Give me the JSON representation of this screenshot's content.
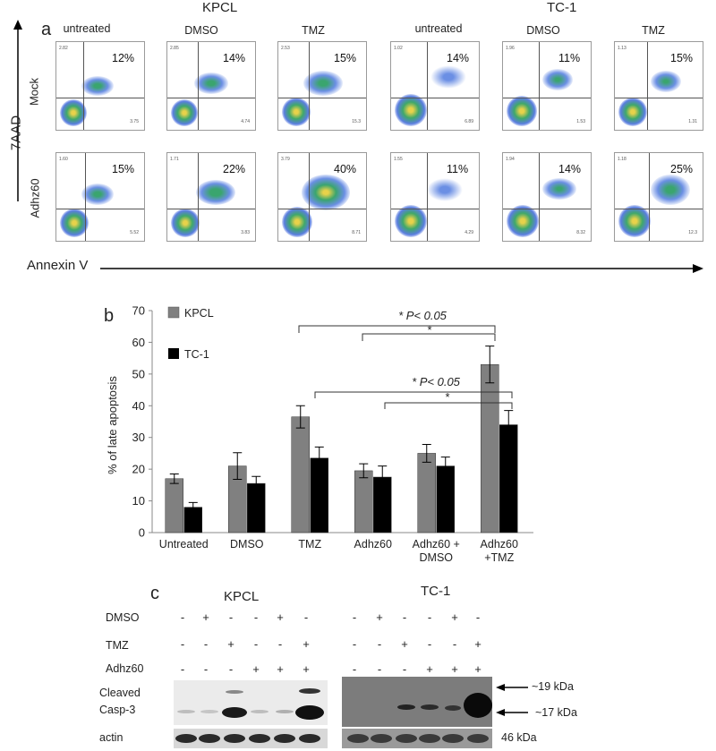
{
  "panel_a": {
    "label": "a",
    "y_axis_label": "7AAD",
    "x_axis_label": "Annexin V",
    "groups": [
      {
        "name": "KPCL",
        "conditions": [
          "untreated",
          "DMSO",
          "TMZ"
        ]
      },
      {
        "name": "TC-1",
        "conditions": [
          "untreated",
          "DMSO",
          "TMZ"
        ]
      }
    ],
    "rows": [
      "Mock",
      "Adhz60"
    ],
    "percentages": [
      [
        "12%",
        "14%",
        "15%",
        "14%",
        "11%",
        "15%"
      ],
      [
        "15%",
        "22%",
        "40%",
        "11%",
        "14%",
        "25%"
      ]
    ]
  },
  "panel_b": {
    "label": "b",
    "significance": [
      "* P< 0.05",
      "*",
      "* P< 0.05",
      "*"
    ]
  },
  "chart_data": {
    "type": "bar",
    "title": "",
    "xlabel": "",
    "ylabel": "% of late apoptosis",
    "ylim": [
      0,
      70
    ],
    "yticks": [
      "0",
      "10",
      "20",
      "30",
      "40",
      "50",
      "60",
      "70"
    ],
    "categories": [
      "Untreated",
      "DMSO",
      "TMZ",
      "Adhz60",
      "Adhz60 + DMSO",
      "Adhz60 +TMZ"
    ],
    "category_lines": [
      [
        "Untreated"
      ],
      [
        "DMSO"
      ],
      [
        "TMZ"
      ],
      [
        "Adhz60"
      ],
      [
        "Adhz60 +",
        "DMSO"
      ],
      [
        "Adhz60",
        "+TMZ"
      ]
    ],
    "legend_position": "top-left",
    "series": [
      {
        "name": "KPCL",
        "color": "#808080",
        "values": [
          17,
          21,
          36.5,
          19.5,
          25,
          53
        ],
        "errors": [
          1.5,
          4.2,
          3.5,
          2.2,
          2.8,
          5.8
        ]
      },
      {
        "name": "TC-1",
        "color": "#000000",
        "values": [
          8,
          15.5,
          23.5,
          17.5,
          21,
          34
        ],
        "errors": [
          1.5,
          2.2,
          3.5,
          3.5,
          2.8,
          4.5
        ]
      }
    ]
  },
  "panel_c": {
    "label": "c",
    "groups": [
      "KPCL",
      "TC-1"
    ],
    "treatments": [
      {
        "name": "DMSO",
        "signs": [
          "-",
          "+",
          "-",
          "-",
          "+",
          "-"
        ]
      },
      {
        "name": "TMZ",
        "signs": [
          "-",
          "-",
          "+",
          "-",
          "-",
          "+"
        ]
      },
      {
        "name": "Adhz60",
        "signs": [
          "-",
          "-",
          "-",
          "+",
          "+",
          "+"
        ]
      }
    ],
    "band_labels": {
      "cleaved_1": "Cleaved",
      "cleaved_2": "Casp-3",
      "actin": "actin"
    },
    "markers": [
      "~19 kDa",
      "~17 kDa",
      "46 kDa"
    ]
  }
}
